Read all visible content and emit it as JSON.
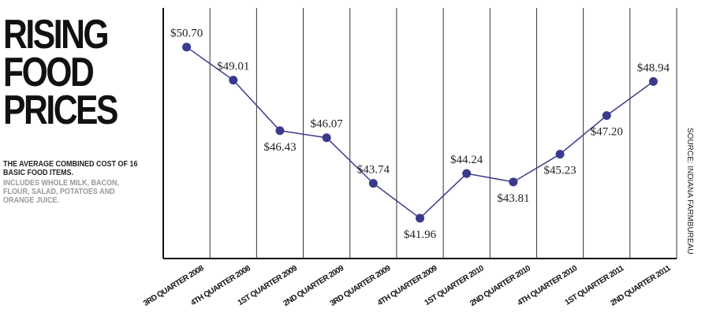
{
  "chart_data": {
    "type": "line",
    "title": "RISING FOOD PRICES",
    "subtitle": "THE AVERAGE COMBINED COST OF 16 BASIC FOOD ITEMS.",
    "note": "INCLUDES WHOLE MILK, BACON, FLOUR, SALAD, POTATOES AND ORANGE JUICE.",
    "source": "SOURCE: INDIANA FARMBUREAU",
    "categories": [
      "3RD QUARTER 2008",
      "4TH QUARTER 2008",
      "1ST QUARTER 2009",
      "2ND QUARTER 2009",
      "3RD QUARTER 2009",
      "4TH QUARTER 2009",
      "1ST QUARTER 2010",
      "2ND QUARTER 2010",
      "4TH QUARTER 2010",
      "1ST QUARTER 2011",
      "2ND QUARTER 2011"
    ],
    "series": [
      {
        "name": "Cost",
        "color": "#3a3a8c",
        "values": [
          50.7,
          49.01,
          46.43,
          46.07,
          43.74,
          41.96,
          44.24,
          43.81,
          45.23,
          47.2,
          48.94
        ],
        "value_labels": [
          "$50.70",
          "$49.01",
          "$46.43",
          "$46.07",
          "$43.74",
          "$41.96",
          "$44.24",
          "$43.81",
          "$45.23",
          "$47.20",
          "$48.94"
        ],
        "label_positions": [
          "above",
          "above",
          "below",
          "above",
          "above",
          "below",
          "above",
          "below",
          "below",
          "below",
          "above"
        ]
      }
    ],
    "ylim": [
      39.9,
      52.7
    ]
  }
}
